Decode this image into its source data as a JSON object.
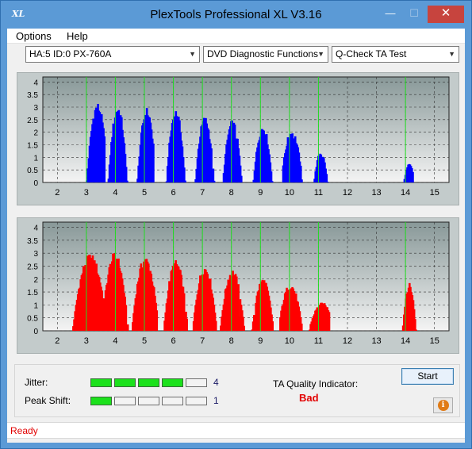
{
  "window": {
    "title": "PlexTools Professional XL V3.16",
    "icon_text": "XL",
    "close_glyph": "✕",
    "minimize_glyph": "—",
    "maximize_glyph": "☐"
  },
  "menu": {
    "options": "Options",
    "help": "Help"
  },
  "toolbar": {
    "drive": "HA:5 ID:0  PX-760A",
    "function": "DVD Diagnostic Functions",
    "test": "Q-Check TA Test"
  },
  "colors": {
    "land_series": "#0000ff",
    "pit_series": "#ff0000",
    "grid_marker": "#22dd22",
    "plot_bg_top": "#889898",
    "plot_bg_bottom": "#f4f4f4",
    "status_text": "#e20000"
  },
  "chart_data": [
    {
      "type": "bar",
      "series_color": "#0000ff",
      "x_ticks": [
        "2",
        "3",
        "4",
        "5",
        "6",
        "7",
        "8",
        "9",
        "10",
        "11",
        "12",
        "13",
        "14",
        "15"
      ],
      "y_ticks": [
        "0",
        "0.5",
        "1",
        "1.5",
        "2",
        "2.5",
        "3",
        "3.5",
        "4"
      ],
      "ylim": [
        0,
        4.2
      ],
      "xlim": [
        1.5,
        15.5
      ],
      "markers_at": [
        3,
        4,
        5,
        6,
        7,
        8,
        9,
        10,
        11,
        14
      ],
      "peaks": [
        {
          "x": 3.35,
          "y": 3.2,
          "start": 2.95,
          "end": 3.6
        },
        {
          "x": 4.05,
          "y": 3.1,
          "start": 3.7,
          "end": 4.4
        },
        {
          "x": 5.05,
          "y": 3.0,
          "start": 4.7,
          "end": 5.3
        },
        {
          "x": 6.05,
          "y": 2.95,
          "start": 5.7,
          "end": 6.4
        },
        {
          "x": 7.05,
          "y": 2.65,
          "start": 6.7,
          "end": 7.4
        },
        {
          "x": 8.0,
          "y": 2.5,
          "start": 7.7,
          "end": 8.35
        },
        {
          "x": 9.05,
          "y": 2.3,
          "start": 8.7,
          "end": 9.4
        },
        {
          "x": 10.05,
          "y": 2.1,
          "start": 9.75,
          "end": 10.45
        },
        {
          "x": 11.05,
          "y": 1.25,
          "start": 10.8,
          "end": 11.3
        },
        {
          "x": 14.1,
          "y": 0.75,
          "start": 13.9,
          "end": 14.25
        }
      ]
    },
    {
      "type": "bar",
      "series_color": "#ff0000",
      "x_ticks": [
        "2",
        "3",
        "4",
        "5",
        "6",
        "7",
        "8",
        "9",
        "10",
        "11",
        "12",
        "13",
        "14",
        "15"
      ],
      "y_ticks": [
        "0",
        "0.5",
        "1",
        "1.5",
        "2",
        "2.5",
        "3",
        "3.5",
        "4"
      ],
      "ylim": [
        0,
        4.2
      ],
      "xlim": [
        1.5,
        15.5
      ],
      "markers_at": [
        3,
        4,
        5,
        6,
        7,
        8,
        9,
        10,
        11,
        14
      ],
      "peaks": [
        {
          "x": 3.1,
          "y": 3.0,
          "start": 2.45,
          "end": 3.6
        },
        {
          "x": 3.95,
          "y": 3.05,
          "start": 3.5,
          "end": 4.45
        },
        {
          "x": 5.0,
          "y": 2.9,
          "start": 4.5,
          "end": 5.4
        },
        {
          "x": 6.05,
          "y": 2.75,
          "start": 5.6,
          "end": 6.45
        },
        {
          "x": 7.05,
          "y": 2.55,
          "start": 6.6,
          "end": 7.45
        },
        {
          "x": 8.0,
          "y": 2.4,
          "start": 7.6,
          "end": 8.45
        },
        {
          "x": 9.05,
          "y": 2.05,
          "start": 8.65,
          "end": 9.4
        },
        {
          "x": 10.0,
          "y": 1.85,
          "start": 9.65,
          "end": 10.45
        },
        {
          "x": 11.1,
          "y": 1.1,
          "start": 10.6,
          "end": 11.35
        },
        {
          "x": 14.1,
          "y": 1.85,
          "start": 13.85,
          "end": 14.35
        }
      ]
    }
  ],
  "metrics": {
    "jitter_label": "Jitter:",
    "jitter_value": "4",
    "jitter_level": 4,
    "peak_shift_label": "Peak Shift:",
    "peak_shift_value": "1",
    "peak_shift_level": 1,
    "segments_total": 5,
    "ta_quality_label": "TA Quality Indicator:",
    "ta_quality_value": "Bad"
  },
  "buttons": {
    "start": "Start",
    "info": "i"
  },
  "status": {
    "text": "Ready"
  }
}
